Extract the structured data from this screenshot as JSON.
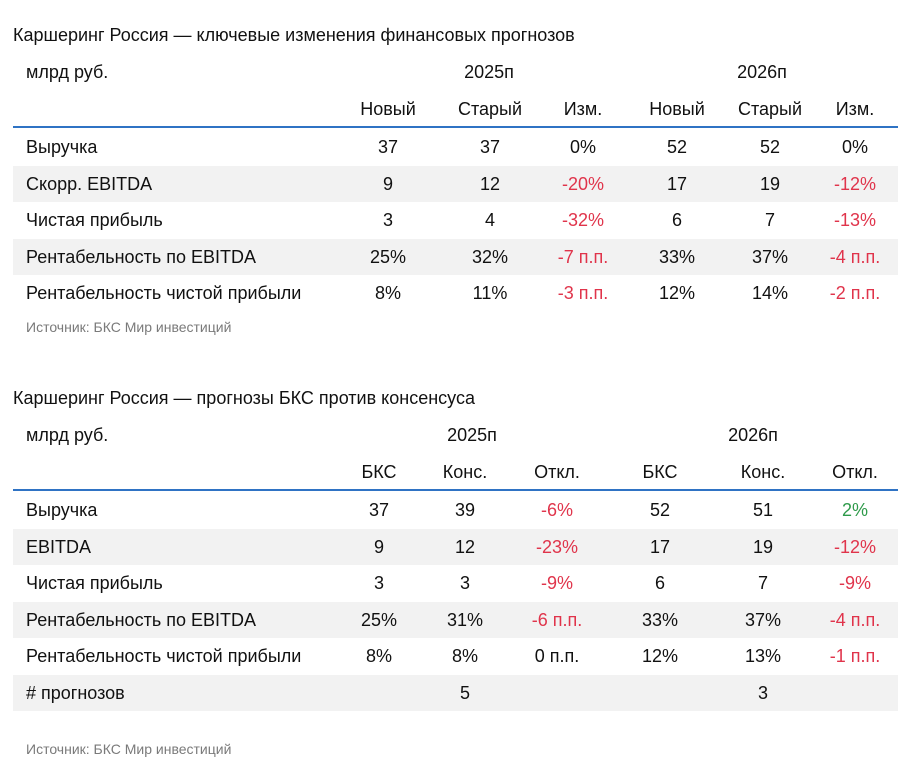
{
  "table1": {
    "title": "Каршеринг Россия — ключевые изменения финансовых прогнозов",
    "unit": "млрд руб.",
    "years": [
      "2025п",
      "2026п"
    ],
    "headers": [
      "Новый",
      "Старый",
      "Изм.",
      "Новый",
      "Старый",
      "Изм."
    ],
    "rows": [
      {
        "label": "Выручка",
        "cells": [
          "37",
          "37",
          "0%",
          "52",
          "52",
          "0%"
        ],
        "colors": [
          "",
          "",
          "",
          "",
          "",
          ""
        ]
      },
      {
        "label": "Скорр. EBITDA",
        "cells": [
          "9",
          "12",
          "-20%",
          "17",
          "19",
          "-12%"
        ],
        "colors": [
          "",
          "",
          "neg",
          "",
          "",
          "neg"
        ]
      },
      {
        "label": "Чистая прибыль",
        "cells": [
          "3",
          "4",
          "-32%",
          "6",
          "7",
          "-13%"
        ],
        "colors": [
          "",
          "",
          "neg",
          "",
          "",
          "neg"
        ]
      },
      {
        "label": "Рентабельность по EBITDA",
        "cells": [
          "25%",
          "32%",
          "-7 п.п.",
          "33%",
          "37%",
          "-4 п.п."
        ],
        "colors": [
          "",
          "",
          "neg",
          "",
          "",
          "neg"
        ]
      },
      {
        "label": "Рентабельность чистой прибыли",
        "cells": [
          "8%",
          "11%",
          "-3 п.п.",
          "12%",
          "14%",
          "-2 п.п."
        ],
        "colors": [
          "",
          "",
          "neg",
          "",
          "",
          "neg"
        ]
      }
    ],
    "source": "Источник: БКС Мир инвестиций"
  },
  "table2": {
    "title": "Каршеринг Россия — прогнозы БКС против консенсуса",
    "unit": "млрд руб.",
    "years": [
      "2025п",
      "2026п"
    ],
    "headers": [
      "БКС",
      "Конс.",
      "Откл.",
      "БКС",
      "Конс.",
      "Откл."
    ],
    "rows": [
      {
        "label": "Выручка",
        "cells": [
          "37",
          "39",
          "-6%",
          "52",
          "51",
          "2%"
        ],
        "colors": [
          "",
          "",
          "neg",
          "",
          "",
          "pos"
        ]
      },
      {
        "label": "EBITDA",
        "cells": [
          "9",
          "12",
          "-23%",
          "17",
          "19",
          "-12%"
        ],
        "colors": [
          "",
          "",
          "neg",
          "",
          "",
          "neg"
        ]
      },
      {
        "label": "Чистая прибыль",
        "cells": [
          "3",
          "3",
          "-9%",
          "6",
          "7",
          "-9%"
        ],
        "colors": [
          "",
          "",
          "neg",
          "",
          "",
          "neg"
        ]
      },
      {
        "label": "Рентабельность по EBITDA",
        "cells": [
          "25%",
          "31%",
          "-6 п.п.",
          "33%",
          "37%",
          "-4 п.п."
        ],
        "colors": [
          "",
          "",
          "neg",
          "",
          "",
          "neg"
        ]
      },
      {
        "label": "Рентабельность чистой прибыли",
        "cells": [
          "8%",
          "8%",
          "0 п.п.",
          "12%",
          "13%",
          "-1 п.п."
        ],
        "colors": [
          "",
          "",
          "",
          "",
          "",
          "neg"
        ]
      },
      {
        "label": "# прогнозов",
        "cells": [
          "",
          "5",
          "",
          "",
          "3",
          ""
        ],
        "colors": [
          "",
          "",
          "",
          "",
          "",
          ""
        ]
      }
    ],
    "source": "Источник: БКС Мир инвестиций"
  },
  "colors": {
    "negative": "#e0344b",
    "positive": "#2e9a4a",
    "rule": "#2f73c4",
    "shade": "#f2f2f2"
  }
}
